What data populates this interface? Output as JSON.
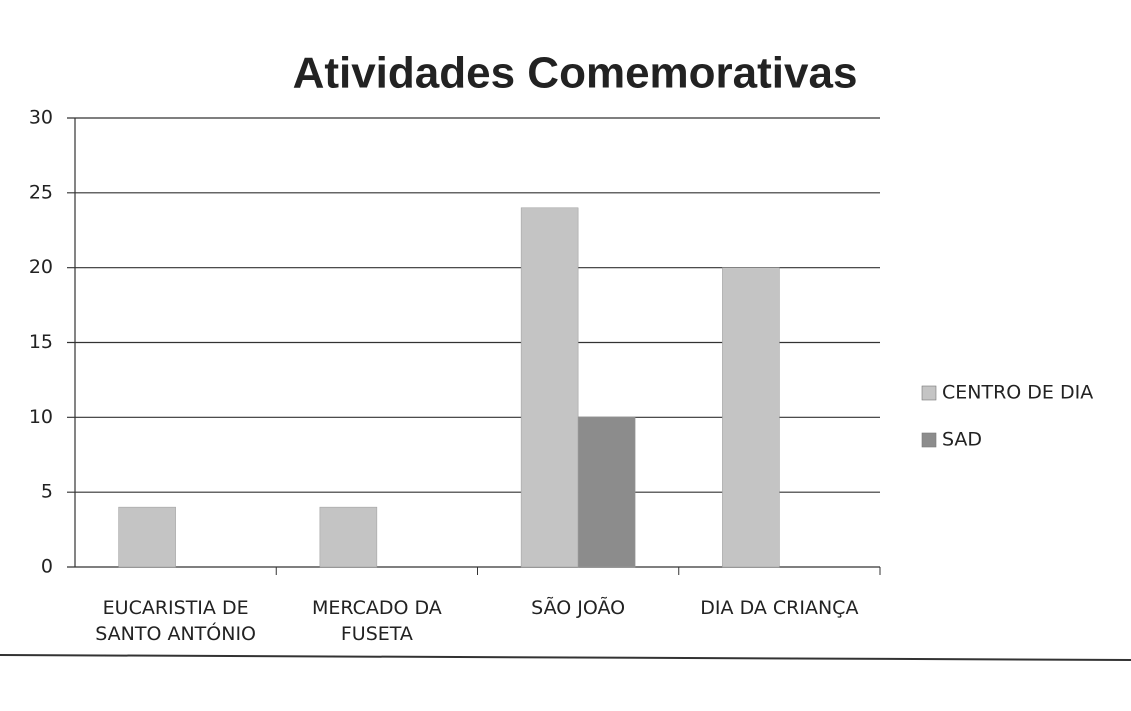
{
  "chart_data": {
    "type": "bar",
    "title": "Atividades Comemorativas",
    "categories": [
      "EUCARISTIA DE SANTO ANTÓNIO",
      "MERCADO DA FUSETA",
      "SÃO JOÃO",
      "DIA DA CRIANÇA"
    ],
    "series": [
      {
        "name": "CENTRO DE DIA",
        "color": "#c4c4c4",
        "values": [
          4,
          4,
          24,
          20
        ]
      },
      {
        "name": "SAD",
        "color": "#8c8c8c",
        "values": [
          0,
          0,
          10,
          0
        ]
      }
    ],
    "ylim": [
      0,
      30
    ],
    "yticks": [
      0,
      5,
      10,
      15,
      20,
      25,
      30
    ],
    "grid": true,
    "legend": "right"
  }
}
